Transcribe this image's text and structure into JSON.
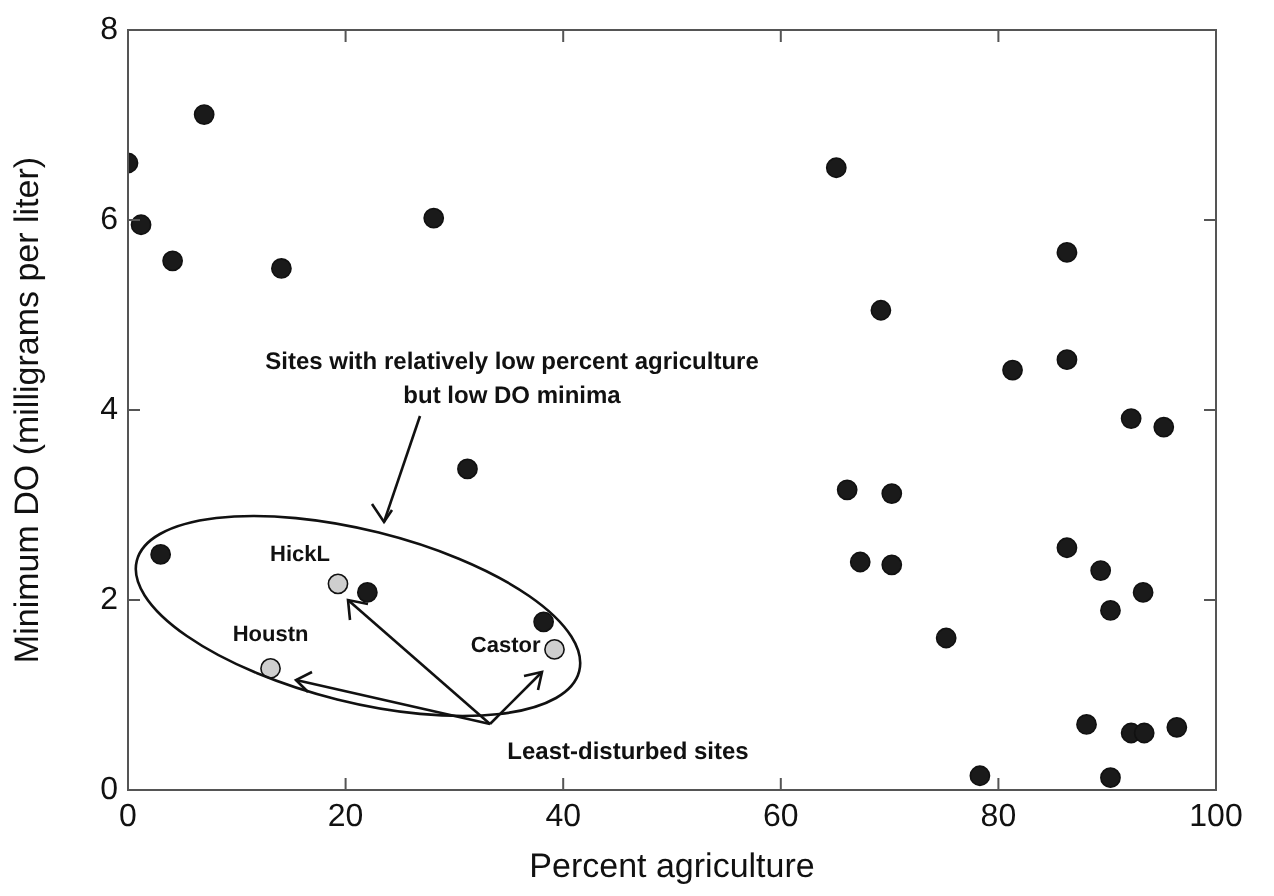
{
  "chart_data": {
    "type": "scatter",
    "xlabel": "Percent agriculture",
    "ylabel": "Minimum DO (milligrams per liter)",
    "xlim": [
      0,
      100
    ],
    "xticks": [
      0,
      20,
      40,
      60,
      80,
      100
    ],
    "ylim": [
      0,
      8
    ],
    "yticks": [
      0,
      2,
      4,
      6,
      8
    ],
    "grid": false,
    "legend": false,
    "marker": "circle",
    "series": [
      {
        "color": "#1a1a1a",
        "x": [
          0,
          1.2,
          4.1,
          7.0,
          14.1,
          28.1,
          31.2,
          3.0,
          22.0,
          38.2,
          65.1,
          86.3,
          69.2,
          81.3,
          86.3,
          92.2,
          95.2,
          66.1,
          70.2,
          67.3,
          70.2,
          86.3,
          89.4,
          93.3,
          90.3,
          75.2,
          88.1,
          92.2,
          93.4,
          96.4,
          78.3,
          90.3
        ],
        "values": [
          6.6,
          5.95,
          5.57,
          7.11,
          5.49,
          6.02,
          3.38,
          2.48,
          2.08,
          1.77,
          6.55,
          5.66,
          5.05,
          4.42,
          4.53,
          3.91,
          3.82,
          3.16,
          3.12,
          2.4,
          2.37,
          2.55,
          2.31,
          2.08,
          1.89,
          1.6,
          0.69,
          0.6,
          0.6,
          0.66,
          0.15,
          0.13
        ]
      },
      {
        "color": "#cfcfcf",
        "x": [
          19.3,
          13.1,
          39.2
        ],
        "values": [
          2.17,
          1.28,
          1.48
        ]
      }
    ],
    "annotations": [
      "Sites with relatively low percent agriculture\nbut low DO minima",
      "Least-disturbed sites",
      {
        "text": "HickL",
        "x": 19.3,
        "y": 2.17
      },
      {
        "text": "Houstn",
        "x": 13.1,
        "y": 1.28
      },
      {
        "text": "Castor",
        "x": 39.2,
        "y": 1.48
      }
    ]
  }
}
